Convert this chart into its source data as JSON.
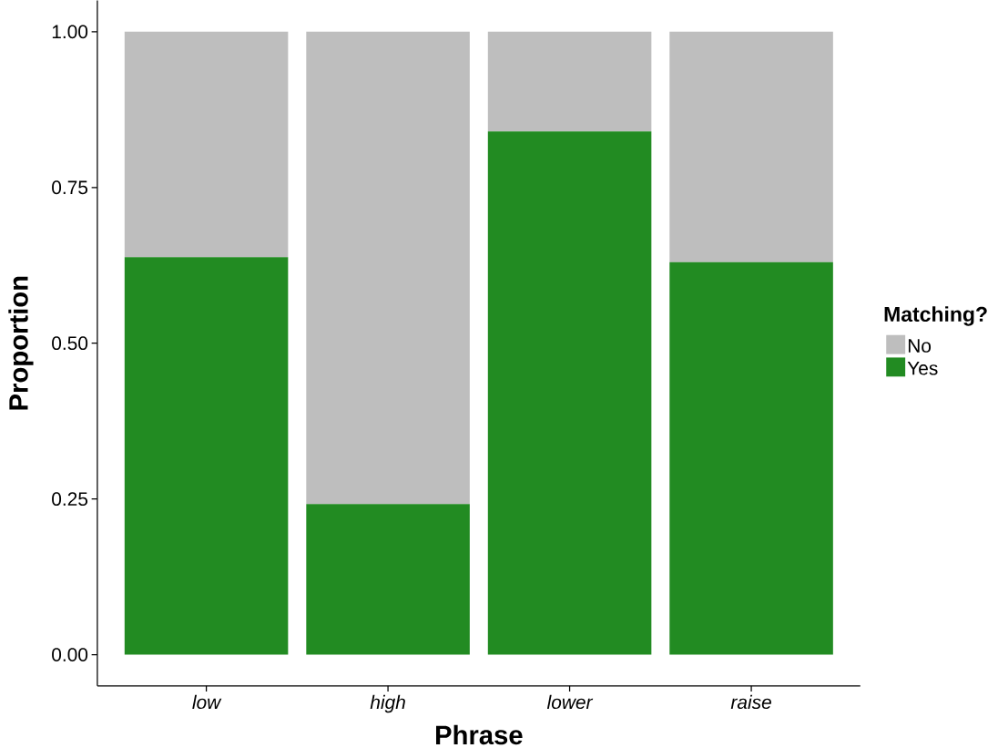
{
  "chart_data": {
    "type": "bar",
    "stacked": true,
    "xlabel": "Phrase",
    "ylabel": "Proportion",
    "legend_title": "Matching?",
    "legend": "right",
    "categories": [
      "low",
      "high",
      "lower",
      "raise"
    ],
    "series": [
      {
        "name": "Yes",
        "color": "#228b22",
        "values": [
          0.638,
          0.242,
          0.84,
          0.63
        ]
      },
      {
        "name": "No",
        "color": "#bebebe",
        "values": [
          0.362,
          0.758,
          0.16,
          0.37
        ]
      }
    ],
    "ylim": [
      -0.05,
      1.05
    ],
    "yticks": [
      {
        "value": 0,
        "label": "0.00"
      },
      {
        "value": 0.25,
        "label": "0.25"
      },
      {
        "value": 0.5,
        "label": "0.50"
      },
      {
        "value": 0.75,
        "label": "0.75"
      },
      {
        "value": 1,
        "label": "1.00"
      }
    ],
    "grid": false
  }
}
